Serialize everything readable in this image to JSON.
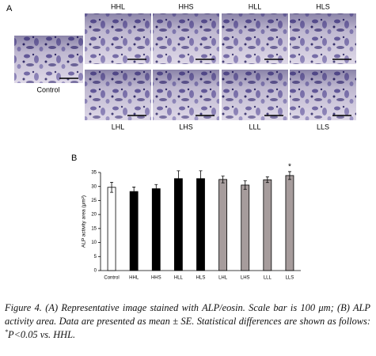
{
  "panel_a": {
    "label": "A",
    "control": "Control",
    "top_row": [
      "HHL",
      "HHS",
      "HLL",
      "HLS"
    ],
    "bottom_row": [
      "LHL",
      "LHS",
      "LLL",
      "LLS"
    ]
  },
  "panel_b": {
    "label": "B"
  },
  "chart_data": {
    "type": "bar",
    "y_label": "ALP activity area (μm²)",
    "categories": [
      "Control",
      "HHL",
      "HHS",
      "HLL",
      "HLS",
      "LHL",
      "LHS",
      "LLL",
      "LLS"
    ],
    "values": [
      29.7,
      28.2,
      29.2,
      32.8,
      32.8,
      32.5,
      30.5,
      32.4,
      33.9
    ],
    "errors": [
      1.8,
      1.6,
      1.5,
      2.8,
      2.8,
      1.2,
      1.5,
      1.0,
      1.4
    ],
    "colors": [
      "#ffffff",
      "#000000",
      "#000000",
      "#000000",
      "#000000",
      "#a69c9c",
      "#a69c9c",
      "#a69c9c",
      "#a69c9c"
    ],
    "ylim": [
      0,
      35
    ],
    "yticks": [
      0,
      5,
      10,
      15,
      20,
      25,
      30,
      35
    ],
    "annotations": [
      {
        "category": "LLS",
        "text": "*"
      }
    ]
  },
  "caption": {
    "label": "Figure 4.",
    "text": "(A) Representative image stained with ALP/eosin. Scale bar is 100 μm; (B) ALP activity area. Data are presented as mean ± SE. Statistical differences are shown as follows:",
    "superscript": "*",
    "tail": "P<0.05 vs. HHL."
  }
}
